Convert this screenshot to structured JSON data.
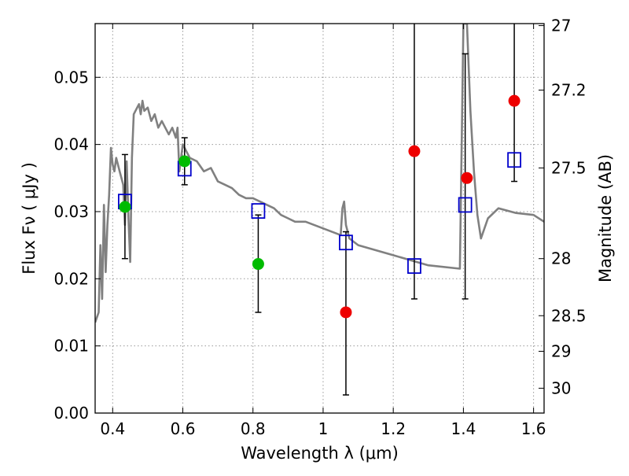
{
  "chart_data": {
    "type": "scatter",
    "xlabel": "Wavelength  λ (μm)",
    "ylabel": "Flux  Fν  ( μJy )",
    "ylabel_right": "Magnitude (AB)",
    "xlim": [
      0.35,
      1.63
    ],
    "ylim": [
      0.0,
      0.058
    ],
    "grid": true,
    "x_ticks": [
      0.4,
      0.6,
      0.8,
      1.0,
      1.2,
      1.4,
      1.6
    ],
    "x_tick_labels": [
      "0.4",
      "0.6",
      "0.8",
      "1",
      "1.2",
      "1.4",
      "1.6"
    ],
    "y_ticks": [
      0.0,
      0.01,
      0.02,
      0.03,
      0.04,
      0.05
    ],
    "y_tick_labels": [
      "0.00",
      "0.01",
      "0.02",
      "0.03",
      "0.04",
      "0.05"
    ],
    "right_ticks": [
      {
        "label": "27",
        "flux": 0.0577
      },
      {
        "label": "27.2",
        "flux": 0.0481
      },
      {
        "label": "27.5",
        "flux": 0.0365
      },
      {
        "label": "28",
        "flux": 0.023
      },
      {
        "label": "28.5",
        "flux": 0.0145
      },
      {
        "label": "29",
        "flux": 0.0092
      },
      {
        "label": "30",
        "flux": 0.0037
      }
    ],
    "colors": {
      "model": "#808080",
      "green": "#00bb00",
      "red": "#ee0000",
      "box": "#0000cc",
      "error": "#000000",
      "grid": "#999999"
    },
    "model_spectrum": {
      "name": "model",
      "x": [
        0.35,
        0.36,
        0.365,
        0.37,
        0.375,
        0.38,
        0.385,
        0.39,
        0.395,
        0.4,
        0.405,
        0.41,
        0.42,
        0.43,
        0.435,
        0.44,
        0.445,
        0.45,
        0.455,
        0.46,
        0.47,
        0.475,
        0.48,
        0.485,
        0.49,
        0.5,
        0.51,
        0.52,
        0.53,
        0.54,
        0.55,
        0.56,
        0.57,
        0.58,
        0.585,
        0.59,
        0.6,
        0.62,
        0.64,
        0.66,
        0.68,
        0.7,
        0.72,
        0.74,
        0.76,
        0.78,
        0.8,
        0.82,
        0.84,
        0.86,
        0.88,
        0.9,
        0.92,
        0.95,
        1.0,
        1.05,
        1.055,
        1.06,
        1.065,
        1.075,
        1.1,
        1.2,
        1.3,
        1.39,
        1.395,
        1.4,
        1.41,
        1.42,
        1.43,
        1.44,
        1.45,
        1.47,
        1.5,
        1.55,
        1.6,
        1.63
      ],
      "y": [
        0.0135,
        0.015,
        0.025,
        0.017,
        0.031,
        0.021,
        0.028,
        0.0325,
        0.0395,
        0.037,
        0.036,
        0.038,
        0.036,
        0.034,
        0.028,
        0.0375,
        0.029,
        0.0225,
        0.038,
        0.0445,
        0.0455,
        0.046,
        0.0445,
        0.0465,
        0.045,
        0.0455,
        0.0435,
        0.0445,
        0.0425,
        0.0435,
        0.0425,
        0.0415,
        0.0425,
        0.041,
        0.0425,
        0.036,
        0.04,
        0.038,
        0.0375,
        0.036,
        0.0365,
        0.0345,
        0.034,
        0.0335,
        0.0325,
        0.032,
        0.032,
        0.0315,
        0.031,
        0.0305,
        0.0295,
        0.029,
        0.0285,
        0.0285,
        0.0275,
        0.0265,
        0.0305,
        0.0315,
        0.028,
        0.026,
        0.025,
        0.0235,
        0.022,
        0.0215,
        0.04,
        0.058,
        0.058,
        0.045,
        0.036,
        0.0295,
        0.026,
        0.029,
        0.0305,
        0.0298,
        0.0295,
        0.0285
      ]
    },
    "green_points": {
      "x": [
        0.435,
        0.605,
        0.815
      ],
      "y": [
        0.0307,
        0.0375,
        0.0222
      ]
    },
    "red_points": {
      "x": [
        1.065,
        1.26,
        1.41,
        1.545
      ],
      "y": [
        0.015,
        0.039,
        0.035,
        0.0465
      ]
    },
    "box_points": {
      "x": [
        0.435,
        0.605,
        0.815,
        1.065,
        1.26,
        1.405,
        1.545
      ],
      "y": [
        0.0315,
        0.0364,
        0.0301,
        0.0254,
        0.0219,
        0.031,
        0.0377
      ]
    },
    "error_bars": [
      {
        "x": 0.435,
        "lo": 0.023,
        "hi": 0.0385
      },
      {
        "x": 0.605,
        "lo": 0.034,
        "hi": 0.041
      },
      {
        "x": 0.815,
        "lo": 0.015,
        "hi": 0.0295
      },
      {
        "x": 1.065,
        "lo": 0.0027,
        "hi": 0.027
      },
      {
        "x": 1.26,
        "lo": 0.017,
        "hi": 0.058
      },
      {
        "x": 1.405,
        "lo": 0.017,
        "hi": 0.0535
      },
      {
        "x": 1.545,
        "lo": 0.0345,
        "hi": 0.058
      }
    ]
  }
}
